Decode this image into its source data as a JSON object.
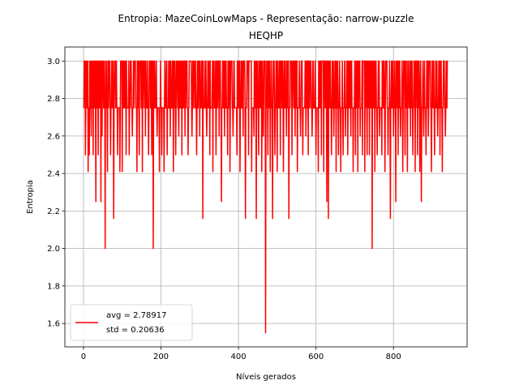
{
  "chart_data": {
    "type": "line",
    "title_lines": [
      "Entropia: MazeCoinLowMaps - Representação: narrow-puzzle",
      "HEQHP"
    ],
    "xlabel": "Níveis gerados",
    "ylabel": "Entropia",
    "xlim": [
      -48,
      990
    ],
    "ylim": [
      1.475,
      3.075
    ],
    "xticks": [
      0,
      200,
      400,
      600,
      800
    ],
    "yticks": [
      1.6,
      1.8,
      2.0,
      2.2,
      2.4,
      2.6,
      2.8,
      3.0
    ],
    "ytick_labels": [
      "1.6",
      "1.8",
      "2.0",
      "2.2",
      "2.4",
      "2.6",
      "2.8",
      "3.0"
    ],
    "grid": true,
    "legend_position": "lower-left",
    "series_color": "#ff0000",
    "x_count": 941,
    "base_value": 2.75,
    "high_value": 3.0,
    "dips": [
      [
        5,
        2.5
      ],
      [
        12,
        2.41
      ],
      [
        15,
        2.5
      ],
      [
        20,
        2.6
      ],
      [
        25,
        2.5
      ],
      [
        32,
        2.25
      ],
      [
        38,
        2.5
      ],
      [
        45,
        2.25
      ],
      [
        48,
        2.6
      ],
      [
        56,
        2.0
      ],
      [
        62,
        2.41
      ],
      [
        70,
        2.5
      ],
      [
        78,
        2.16
      ],
      [
        88,
        2.5
      ],
      [
        94,
        2.41
      ],
      [
        100,
        2.41
      ],
      [
        110,
        2.5
      ],
      [
        118,
        2.5
      ],
      [
        126,
        2.6
      ],
      [
        138,
        2.41
      ],
      [
        144,
        2.5
      ],
      [
        152,
        2.41
      ],
      [
        160,
        2.6
      ],
      [
        168,
        2.5
      ],
      [
        176,
        2.5
      ],
      [
        180,
        2.0
      ],
      [
        190,
        2.6
      ],
      [
        196,
        2.41
      ],
      [
        202,
        2.5
      ],
      [
        208,
        2.41
      ],
      [
        216,
        2.5
      ],
      [
        224,
        2.6
      ],
      [
        232,
        2.41
      ],
      [
        238,
        2.5
      ],
      [
        246,
        2.6
      ],
      [
        254,
        2.5
      ],
      [
        262,
        2.6
      ],
      [
        270,
        2.5
      ],
      [
        280,
        2.6
      ],
      [
        292,
        2.5
      ],
      [
        300,
        2.6
      ],
      [
        308,
        2.16
      ],
      [
        318,
        2.6
      ],
      [
        326,
        2.5
      ],
      [
        334,
        2.41
      ],
      [
        342,
        2.5
      ],
      [
        350,
        2.6
      ],
      [
        356,
        2.25
      ],
      [
        364,
        2.6
      ],
      [
        372,
        2.5
      ],
      [
        378,
        2.41
      ],
      [
        386,
        2.6
      ],
      [
        396,
        2.5
      ],
      [
        404,
        2.41
      ],
      [
        412,
        2.6
      ],
      [
        418,
        2.16
      ],
      [
        426,
        2.5
      ],
      [
        434,
        2.41
      ],
      [
        440,
        2.6
      ],
      [
        446,
        2.16
      ],
      [
        452,
        2.5
      ],
      [
        460,
        2.41
      ],
      [
        464,
        2.6
      ],
      [
        470,
        1.55
      ],
      [
        476,
        2.5
      ],
      [
        482,
        2.41
      ],
      [
        488,
        2.16
      ],
      [
        494,
        2.5
      ],
      [
        500,
        2.41
      ],
      [
        508,
        2.5
      ],
      [
        516,
        2.41
      ],
      [
        524,
        2.6
      ],
      [
        530,
        2.16
      ],
      [
        538,
        2.5
      ],
      [
        546,
        2.6
      ],
      [
        552,
        2.41
      ],
      [
        560,
        2.6
      ],
      [
        566,
        2.5
      ],
      [
        574,
        2.6
      ],
      [
        580,
        2.5
      ],
      [
        590,
        2.6
      ],
      [
        600,
        2.5
      ],
      [
        606,
        2.41
      ],
      [
        614,
        2.5
      ],
      [
        620,
        2.41
      ],
      [
        628,
        2.25
      ],
      [
        632,
        2.16
      ],
      [
        640,
        2.5
      ],
      [
        646,
        2.6
      ],
      [
        652,
        2.41
      ],
      [
        658,
        2.5
      ],
      [
        664,
        2.41
      ],
      [
        670,
        2.5
      ],
      [
        676,
        2.6
      ],
      [
        682,
        2.5
      ],
      [
        690,
        2.6
      ],
      [
        696,
        2.41
      ],
      [
        702,
        2.5
      ],
      [
        708,
        2.41
      ],
      [
        714,
        2.6
      ],
      [
        720,
        2.5
      ],
      [
        726,
        2.41
      ],
      [
        732,
        2.5
      ],
      [
        738,
        2.5
      ],
      [
        745,
        2.0
      ],
      [
        752,
        2.41
      ],
      [
        758,
        2.5
      ],
      [
        764,
        2.6
      ],
      [
        770,
        2.5
      ],
      [
        778,
        2.41
      ],
      [
        786,
        2.5
      ],
      [
        792,
        2.16
      ],
      [
        800,
        2.6
      ],
      [
        806,
        2.25
      ],
      [
        812,
        2.5
      ],
      [
        818,
        2.6
      ],
      [
        824,
        2.41
      ],
      [
        830,
        2.5
      ],
      [
        836,
        2.41
      ],
      [
        844,
        2.6
      ],
      [
        850,
        2.5
      ],
      [
        856,
        2.41
      ],
      [
        862,
        2.5
      ],
      [
        868,
        2.41
      ],
      [
        872,
        2.25
      ],
      [
        878,
        2.6
      ],
      [
        884,
        2.5
      ],
      [
        890,
        2.6
      ],
      [
        898,
        2.41
      ],
      [
        906,
        2.5
      ],
      [
        914,
        2.6
      ],
      [
        920,
        2.5
      ],
      [
        926,
        2.41
      ],
      [
        934,
        2.6
      ]
    ],
    "series": [
      {
        "name": "avg = 2.78917",
        "label_line2": "std = 0.20636"
      }
    ]
  }
}
